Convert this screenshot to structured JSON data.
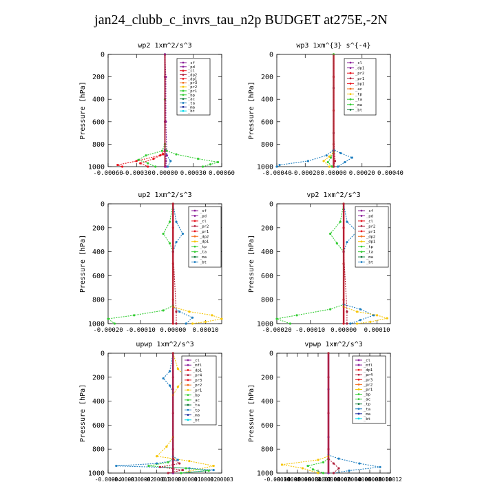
{
  "title": "jan24_clubb_c_invrs_tau_n2p  BUDGET at275E,-2N",
  "colors": {
    "red": "#e8141e",
    "purple": "#8b1f9a",
    "orange": "#f26c1a",
    "yellow": "#f5c400",
    "green": "#33cc33",
    "blue": "#1f7fc0",
    "darkblue": "#1a2a9c",
    "cyan": "#00d8e8",
    "darkgreen": "#127a3a",
    "crimson": "#b0203a"
  },
  "chart_data": [
    {
      "type": "line",
      "title": "wp2   1xm^2/s^3",
      "ylabel": "Pressure [hPa]",
      "xlim": [
        -0.0006,
        0.0006
      ],
      "ylim": [
        1000,
        0
      ],
      "xticks": [
        "-0.00060",
        "-0.00030",
        "0.00000",
        "0.00030",
        "0.00060"
      ],
      "yticks": [
        "0",
        "200",
        "400",
        "600",
        "800",
        "1000"
      ],
      "legend": [
        "_sf",
        "_pd",
        "_cl",
        "_dp2",
        "_dp1",
        "_pr3",
        "_pr2",
        "_pr1",
        "_bp",
        "_ac",
        "_ta",
        "_ma",
        "_bt"
      ],
      "series": [
        {
          "name": "_sf",
          "color": "purple",
          "x": [
            0,
            0,
            0,
            0,
            0,
            1e-05,
            0
          ],
          "y": [
            0,
            200,
            400,
            600,
            800,
            950,
            1000
          ]
        },
        {
          "name": "_pr1",
          "color": "green",
          "x": [
            0,
            0,
            0,
            2e-05,
            0.00012,
            0.00035,
            0.00056,
            0.00048,
            0.0004
          ],
          "y": [
            0,
            400,
            800,
            860,
            890,
            930,
            960,
            980,
            1000
          ]
        },
        {
          "name": "_ac",
          "color": "green",
          "x": [
            0,
            0,
            -3e-05,
            -0.0002,
            -0.00028,
            -0.00018,
            -0.0001
          ],
          "y": [
            0,
            800,
            860,
            900,
            940,
            970,
            1000
          ]
        },
        {
          "name": "_cl",
          "color": "red",
          "x": [
            0,
            0,
            -5e-05,
            -0.0003,
            -0.0005,
            -0.00045
          ],
          "y": [
            0,
            850,
            900,
            950,
            985,
            1000
          ]
        },
        {
          "name": "_dp1",
          "color": "red",
          "x": [
            0,
            0,
            -2e-05,
            -0.00012,
            -0.00026,
            -0.00018
          ],
          "y": [
            0,
            850,
            890,
            930,
            970,
            1000
          ]
        },
        {
          "name": "_ta",
          "color": "blue",
          "x": [
            0,
            0,
            2e-05,
            6e-05,
            3e-05
          ],
          "y": [
            0,
            850,
            900,
            950,
            1000
          ]
        },
        {
          "name": "_bt",
          "color": "purple",
          "x": [
            0,
            1e-05,
            1e-05,
            2e-05,
            1e-05
          ],
          "y": [
            0,
            200,
            600,
            900,
            1000
          ]
        }
      ]
    },
    {
      "type": "line",
      "title": "wp3   1xm^{3} s^{-4}",
      "ylabel": "Pressure [hPa]",
      "xlim": [
        -0.0004,
        0.0004
      ],
      "ylim": [
        1000,
        0
      ],
      "xticks": [
        "-0.00040",
        "-0.00020",
        "0.00000",
        "0.00020",
        "0.00040"
      ],
      "yticks": [
        "0",
        "200",
        "400",
        "600",
        "800",
        "1000"
      ],
      "legend": [
        "_cl",
        "_dp1",
        "_pr2",
        "_pr1",
        "_bp1",
        "_ac",
        "_tp",
        "_ta",
        "_ma",
        "_bt"
      ],
      "series": [
        {
          "name": "_cl",
          "color": "red",
          "x": [
            0,
            0,
            0,
            0,
            0
          ],
          "y": [
            0,
            200,
            500,
            800,
            1000
          ]
        },
        {
          "name": "_dp1",
          "color": "crimson",
          "x": [
            0,
            0,
            0,
            1e-05,
            0
          ],
          "y": [
            0,
            300,
            700,
            950,
            1000
          ]
        },
        {
          "name": "_tp",
          "color": "blue",
          "x": [
            0,
            0,
            -5e-05,
            -0.00018,
            -0.00038,
            -0.0004
          ],
          "y": [
            0,
            850,
            900,
            950,
            985,
            1000
          ]
        },
        {
          "name": "_ta",
          "color": "blue",
          "x": [
            0,
            0,
            5e-05,
            0.00013,
            8e-05,
            3e-05
          ],
          "y": [
            0,
            850,
            880,
            920,
            960,
            1000
          ]
        },
        {
          "name": "_pr2",
          "color": "yellow",
          "x": [
            0,
            0,
            -3e-05,
            -7e-05,
            -3e-05
          ],
          "y": [
            0,
            870,
            910,
            950,
            1000
          ]
        },
        {
          "name": "_ac",
          "color": "green",
          "x": [
            0,
            0,
            -2e-05,
            -4e-05,
            -1e-05
          ],
          "y": [
            0,
            870,
            920,
            960,
            1000
          ]
        }
      ]
    },
    {
      "type": "line",
      "title": "up2   1xm^2/s^3",
      "ylabel": "Pressure [hPa]",
      "xlim": [
        -0.0002,
        0.00015
      ],
      "ylim": [
        1000,
        0
      ],
      "xticks": [
        "-0.00020",
        "-0.00010",
        "0.00000",
        "0.00010"
      ],
      "xtickvals": [
        -0.0002,
        -0.0001,
        0,
        0.0001
      ],
      "yticks": [
        "0",
        "200",
        "400",
        "600",
        "800",
        "1000"
      ],
      "legend": [
        "_sf",
        "_pd",
        "_cl",
        "_pr2",
        "_pr1",
        "_dp2",
        "_dp1",
        "_tp",
        "_ta",
        "_ma",
        "_bt"
      ],
      "series": [
        {
          "name": "_sf",
          "color": "red",
          "x": [
            0,
            0,
            0,
            0,
            0
          ],
          "y": [
            0,
            200,
            500,
            800,
            1000
          ]
        },
        {
          "name": "_pr1",
          "color": "green",
          "x": [
            0,
            -1e-05,
            -3e-05,
            -1e-05,
            0,
            0,
            -3e-05,
            -0.00012,
            -0.0002,
            -0.00018
          ],
          "y": [
            0,
            150,
            250,
            330,
            400,
            850,
            890,
            930,
            960,
            1000
          ]
        },
        {
          "name": "_tp",
          "color": "blue",
          "x": [
            0,
            1e-05,
            3e-05,
            1e-05,
            0,
            0,
            2e-05,
            6e-05,
            4e-05
          ],
          "y": [
            0,
            150,
            250,
            320,
            400,
            860,
            900,
            950,
            1000
          ]
        },
        {
          "name": "_pr2",
          "color": "yellow",
          "x": [
            0,
            0,
            5e-05,
            0.00012,
            0.00015,
            0.0001,
            6e-05
          ],
          "y": [
            0,
            860,
            900,
            930,
            960,
            985,
            1000
          ]
        },
        {
          "name": "_dp1",
          "color": "crimson",
          "x": [
            0,
            0,
            1e-05,
            1e-05
          ],
          "y": [
            0,
            400,
            900,
            1000
          ]
        }
      ]
    },
    {
      "type": "line",
      "title": "vp2   1xm^2/s^3",
      "ylabel": "Pressure [hPa]",
      "xlim": [
        -0.0002,
        0.00014
      ],
      "ylim": [
        1000,
        0
      ],
      "xticks": [
        "-0.00020",
        "-0.00010",
        "0.00000",
        "0.00010"
      ],
      "xtickvals": [
        -0.0002,
        -0.0001,
        0,
        0.0001
      ],
      "yticks": [
        "0",
        "200",
        "400",
        "600",
        "800",
        "1000"
      ],
      "legend": [
        "_sf",
        "_pd",
        "_cl",
        "_pr2",
        "_pr1",
        "_dp2",
        "_dp1",
        "_tp",
        "_ta",
        "_ma",
        "_bt"
      ],
      "series": [
        {
          "name": "_sf",
          "color": "red",
          "x": [
            0,
            0,
            0,
            0,
            0
          ],
          "y": [
            0,
            200,
            500,
            800,
            1000
          ]
        },
        {
          "name": "_pr1",
          "color": "green",
          "x": [
            0,
            -1e-05,
            -4e-05,
            -2e-05,
            0,
            0,
            -4e-05,
            -0.00014,
            -0.0002,
            -0.00016
          ],
          "y": [
            0,
            150,
            250,
            330,
            400,
            840,
            880,
            930,
            960,
            1000
          ]
        },
        {
          "name": "_tp",
          "color": "blue",
          "x": [
            0,
            1e-05,
            4e-05,
            1e-05,
            0,
            0,
            5e-05,
            9e-05,
            5e-05,
            2e-05
          ],
          "y": [
            0,
            150,
            230,
            320,
            400,
            840,
            880,
            930,
            970,
            1000
          ]
        },
        {
          "name": "_pr2",
          "color": "yellow",
          "x": [
            0,
            0,
            4e-05,
            0.0001,
            0.00013,
            8e-05,
            4e-05
          ],
          "y": [
            0,
            860,
            900,
            930,
            955,
            985,
            1000
          ]
        },
        {
          "name": "_dp1",
          "color": "crimson",
          "x": [
            0,
            0,
            1e-05,
            1e-05
          ],
          "y": [
            0,
            400,
            900,
            1000
          ]
        }
      ]
    },
    {
      "type": "line",
      "title": "upwp   1xm^2/s^3",
      "ylabel": "Pressure [hPa]",
      "xlim": [
        -4e-05,
        3e-05
      ],
      "ylim": [
        1000,
        0
      ],
      "xticks": [
        "-0.00004",
        "-0.00003",
        "-0.00002",
        "-0.00001",
        "0.00000",
        "0.00001",
        "0.00002",
        "0.00003"
      ],
      "xtickvals": [
        -4e-05,
        -3e-05,
        -2e-05,
        -1e-05,
        0,
        1e-05,
        2e-05,
        3e-05
      ],
      "yticks": [
        "0",
        "200",
        "400",
        "600",
        "800",
        "1000"
      ],
      "legend": [
        "_cl",
        "_mfl",
        "_dp1",
        "_pr4",
        "_pr3",
        "_pr2",
        "_pr1",
        "_bp",
        "_ac",
        "_ta",
        "_tp",
        "_ma",
        "_bt"
      ],
      "series": [
        {
          "name": "_cl",
          "color": "red",
          "x": [
            0,
            0,
            0,
            0,
            0
          ],
          "y": [
            0,
            200,
            500,
            800,
            1000
          ]
        },
        {
          "name": "_bt",
          "color": "purple",
          "x": [
            0,
            0,
            0,
            0
          ],
          "y": [
            0,
            300,
            700,
            1000
          ]
        },
        {
          "name": "_pr2",
          "color": "yellow",
          "x": [
            0,
            3e-06,
            8e-06,
            3e-06,
            0,
            0,
            -4e-06,
            -1e-05,
            1e-05,
            2.5e-05,
            5e-06
          ],
          "y": [
            0,
            130,
            200,
            280,
            350,
            700,
            780,
            860,
            900,
            940,
            1000
          ]
        },
        {
          "name": "_ta",
          "color": "blue",
          "x": [
            0,
            -2e-06,
            -6e-06,
            -2e-06,
            0,
            0,
            3e-06,
            -1e-05,
            -3.5e-05,
            1e-05,
            2.5e-05,
            5e-06
          ],
          "y": [
            0,
            150,
            210,
            270,
            330,
            860,
            890,
            920,
            940,
            960,
            975,
            1000
          ]
        },
        {
          "name": "_ac",
          "color": "green",
          "x": [
            0,
            0,
            -3e-06,
            -1.5e-05,
            8e-06,
            2.2e-05,
            5e-06
          ],
          "y": [
            0,
            880,
            910,
            940,
            960,
            980,
            1000
          ]
        },
        {
          "name": "_dp1",
          "color": "crimson",
          "x": [
            0,
            0,
            4e-06,
            -8e-06,
            6e-06,
            -3e-06
          ],
          "y": [
            0,
            880,
            920,
            950,
            975,
            1000
          ]
        }
      ]
    },
    {
      "type": "line",
      "title": "vpwp   1xm^2/s^3",
      "ylabel": "Pressure [hPa]",
      "xlim": [
        -0.0001,
        0.00012
      ],
      "ylim": [
        1000,
        0
      ],
      "xticks": [
        "-0.00010",
        "-0.00008",
        "-0.00006",
        "-0.00004",
        "-0.00002",
        "0.00000",
        "0.00002",
        "0.00004",
        "0.00006",
        "0.00008",
        "0.00010",
        "0.00012"
      ],
      "xtickvals": [
        -0.0001,
        -8e-05,
        -6e-05,
        -4e-05,
        -2e-05,
        0,
        2e-05,
        4e-05,
        6e-05,
        8e-05,
        0.0001,
        0.00012
      ],
      "yticks": [
        "0",
        "200",
        "400",
        "600",
        "800",
        "1000"
      ],
      "legend": [
        "_cl",
        "_mfl",
        "_dp1",
        "_pr4",
        "_pr3",
        "_pr2",
        "_pr1",
        "_bp",
        "_ac",
        "_tp",
        "_ta",
        "_ma",
        "_bt"
      ],
      "series": [
        {
          "name": "_cl",
          "color": "red",
          "x": [
            0,
            0,
            0,
            0,
            0
          ],
          "y": [
            0,
            200,
            500,
            800,
            1000
          ]
        },
        {
          "name": "_bt",
          "color": "purple",
          "x": [
            0,
            0,
            0,
            0
          ],
          "y": [
            0,
            300,
            700,
            1000
          ]
        },
        {
          "name": "_tp",
          "color": "blue",
          "x": [
            0,
            0,
            2e-05,
            6e-05,
            0.0001,
            4e-05,
            1e-05
          ],
          "y": [
            0,
            850,
            880,
            920,
            950,
            980,
            1000
          ]
        },
        {
          "name": "_pr2",
          "color": "yellow",
          "x": [
            0,
            0,
            -2e-05,
            -9e-05,
            -5e-05,
            -2e-05
          ],
          "y": [
            0,
            860,
            890,
            930,
            960,
            1000
          ]
        },
        {
          "name": "_ac",
          "color": "green",
          "x": [
            0,
            0,
            -1e-05,
            -4e-05,
            -3e-05,
            -1e-05
          ],
          "y": [
            0,
            880,
            910,
            940,
            970,
            1000
          ]
        },
        {
          "name": "_dp1",
          "color": "crimson",
          "x": [
            0,
            0,
            1e-05,
            2e-05,
            1e-05
          ],
          "y": [
            0,
            880,
            920,
            960,
            1000
          ]
        }
      ]
    }
  ]
}
